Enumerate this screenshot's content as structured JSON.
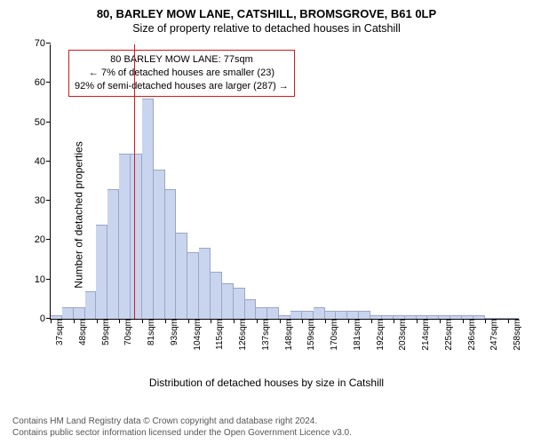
{
  "title_main": "80, BARLEY MOW LANE, CATSHILL, BROMSGROVE, B61 0LP",
  "title_sub": "Size of property relative to detached houses in Catshill",
  "y_axis_label": "Number of detached properties",
  "x_axis_label": "Distribution of detached houses by size in Catshill",
  "chart": {
    "type": "histogram",
    "y_max": 70,
    "y_ticks": [
      0,
      10,
      20,
      30,
      40,
      50,
      60,
      70
    ],
    "x_tick_labels": [
      "37sqm",
      "48sqm",
      "59sqm",
      "70sqm",
      "81sqm",
      "93sqm",
      "104sqm",
      "115sqm",
      "126sqm",
      "137sqm",
      "148sqm",
      "159sqm",
      "170sqm",
      "181sqm",
      "192sqm",
      "203sqm",
      "214sqm",
      "225sqm",
      "236sqm",
      "247sqm",
      "258sqm"
    ],
    "bar_values": [
      1,
      3,
      3,
      7,
      24,
      33,
      42,
      42,
      56,
      38,
      33,
      22,
      17,
      18,
      12,
      9,
      8,
      5,
      3,
      3,
      1,
      2,
      2,
      3,
      2,
      2,
      2,
      2,
      1,
      1,
      1,
      1,
      1,
      1,
      1,
      1,
      1,
      1,
      0,
      0,
      0
    ],
    "bar_fill": "#c9d4ee",
    "bar_stroke": "#9aa6c4",
    "marker_color": "#d11a1a",
    "marker_bin_index": 7,
    "background": "#ffffff",
    "axis_color": "#000000"
  },
  "callout": {
    "line1": "80 BARLEY MOW LANE: 77sqm",
    "line2": "← 7% of detached houses are smaller (23)",
    "line3": "92% of semi-detached houses are larger (287) →",
    "border_color": "#d11a1a"
  },
  "footer_line1": "Contains HM Land Registry data © Crown copyright and database right 2024.",
  "footer_line2": "Contains public sector information licensed under the Open Government Licence v3.0."
}
